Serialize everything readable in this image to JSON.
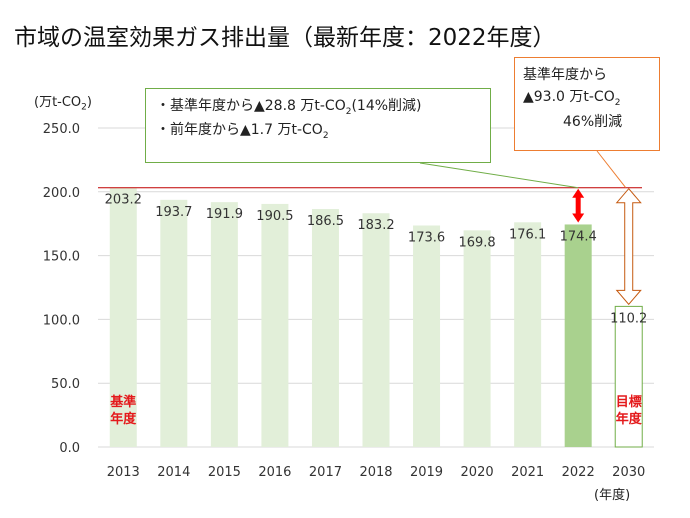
{
  "title": "市域の温室効果ガス排出量（最新年度：2022年度）",
  "y_unit": {
    "prefix": "(万t-CO",
    "sub": "2",
    "suffix": ")"
  },
  "x_unit": "(年度)",
  "colors": {
    "bar": "#e2efd9",
    "highlight": "#a9d18e",
    "target_border": "#70ad47",
    "grid": "#d9d9d9",
    "ref_line": "#c00000",
    "red_arrow": "#ff0000",
    "open_arrow": "#c55a11",
    "callout_border": "#70ad47",
    "callout2_border": "#ed7d31",
    "label_red": "#e41a1c"
  },
  "chart_data": {
    "type": "bar",
    "title": "市域の温室効果ガス排出量（最新年度：2022年度）",
    "xlabel": "(年度)",
    "ylabel": "(万t-CO2)",
    "categories": [
      "2013",
      "2014",
      "2015",
      "2016",
      "2017",
      "2018",
      "2019",
      "2020",
      "2021",
      "2022",
      "2030"
    ],
    "values": [
      203.2,
      193.7,
      191.9,
      190.5,
      186.5,
      183.2,
      173.6,
      169.8,
      176.1,
      174.4,
      110.2
    ],
    "value_labels": [
      "203.2",
      "193.7",
      "191.9",
      "190.5",
      "186.5",
      "183.2",
      "173.6",
      "169.8",
      "176.1",
      "174.4",
      "110.2"
    ],
    "ylim": [
      0,
      250
    ],
    "yticks": [
      "0.0",
      "50.0",
      "100.0",
      "150.0",
      "200.0",
      "250.0"
    ],
    "ytick_values": [
      0,
      50,
      100,
      150,
      200,
      250
    ],
    "reference_value": 203.2,
    "base_label": [
      "基準",
      "年度"
    ],
    "target_label": [
      "目標",
      "年度"
    ]
  },
  "callout1": {
    "line1": {
      "bullet": "・",
      "text": "基準年度から▲28.8 万t-CO",
      "sub": "2",
      "tail": "(14%削減)"
    },
    "line2": {
      "bullet": "・",
      "text": "前年度から▲1.7 万t-CO",
      "sub": "2"
    }
  },
  "callout2": {
    "line1": "基準年度から",
    "line2": {
      "text": "▲93.0 万t-CO",
      "sub": "2"
    },
    "line3": "46%削減"
  }
}
